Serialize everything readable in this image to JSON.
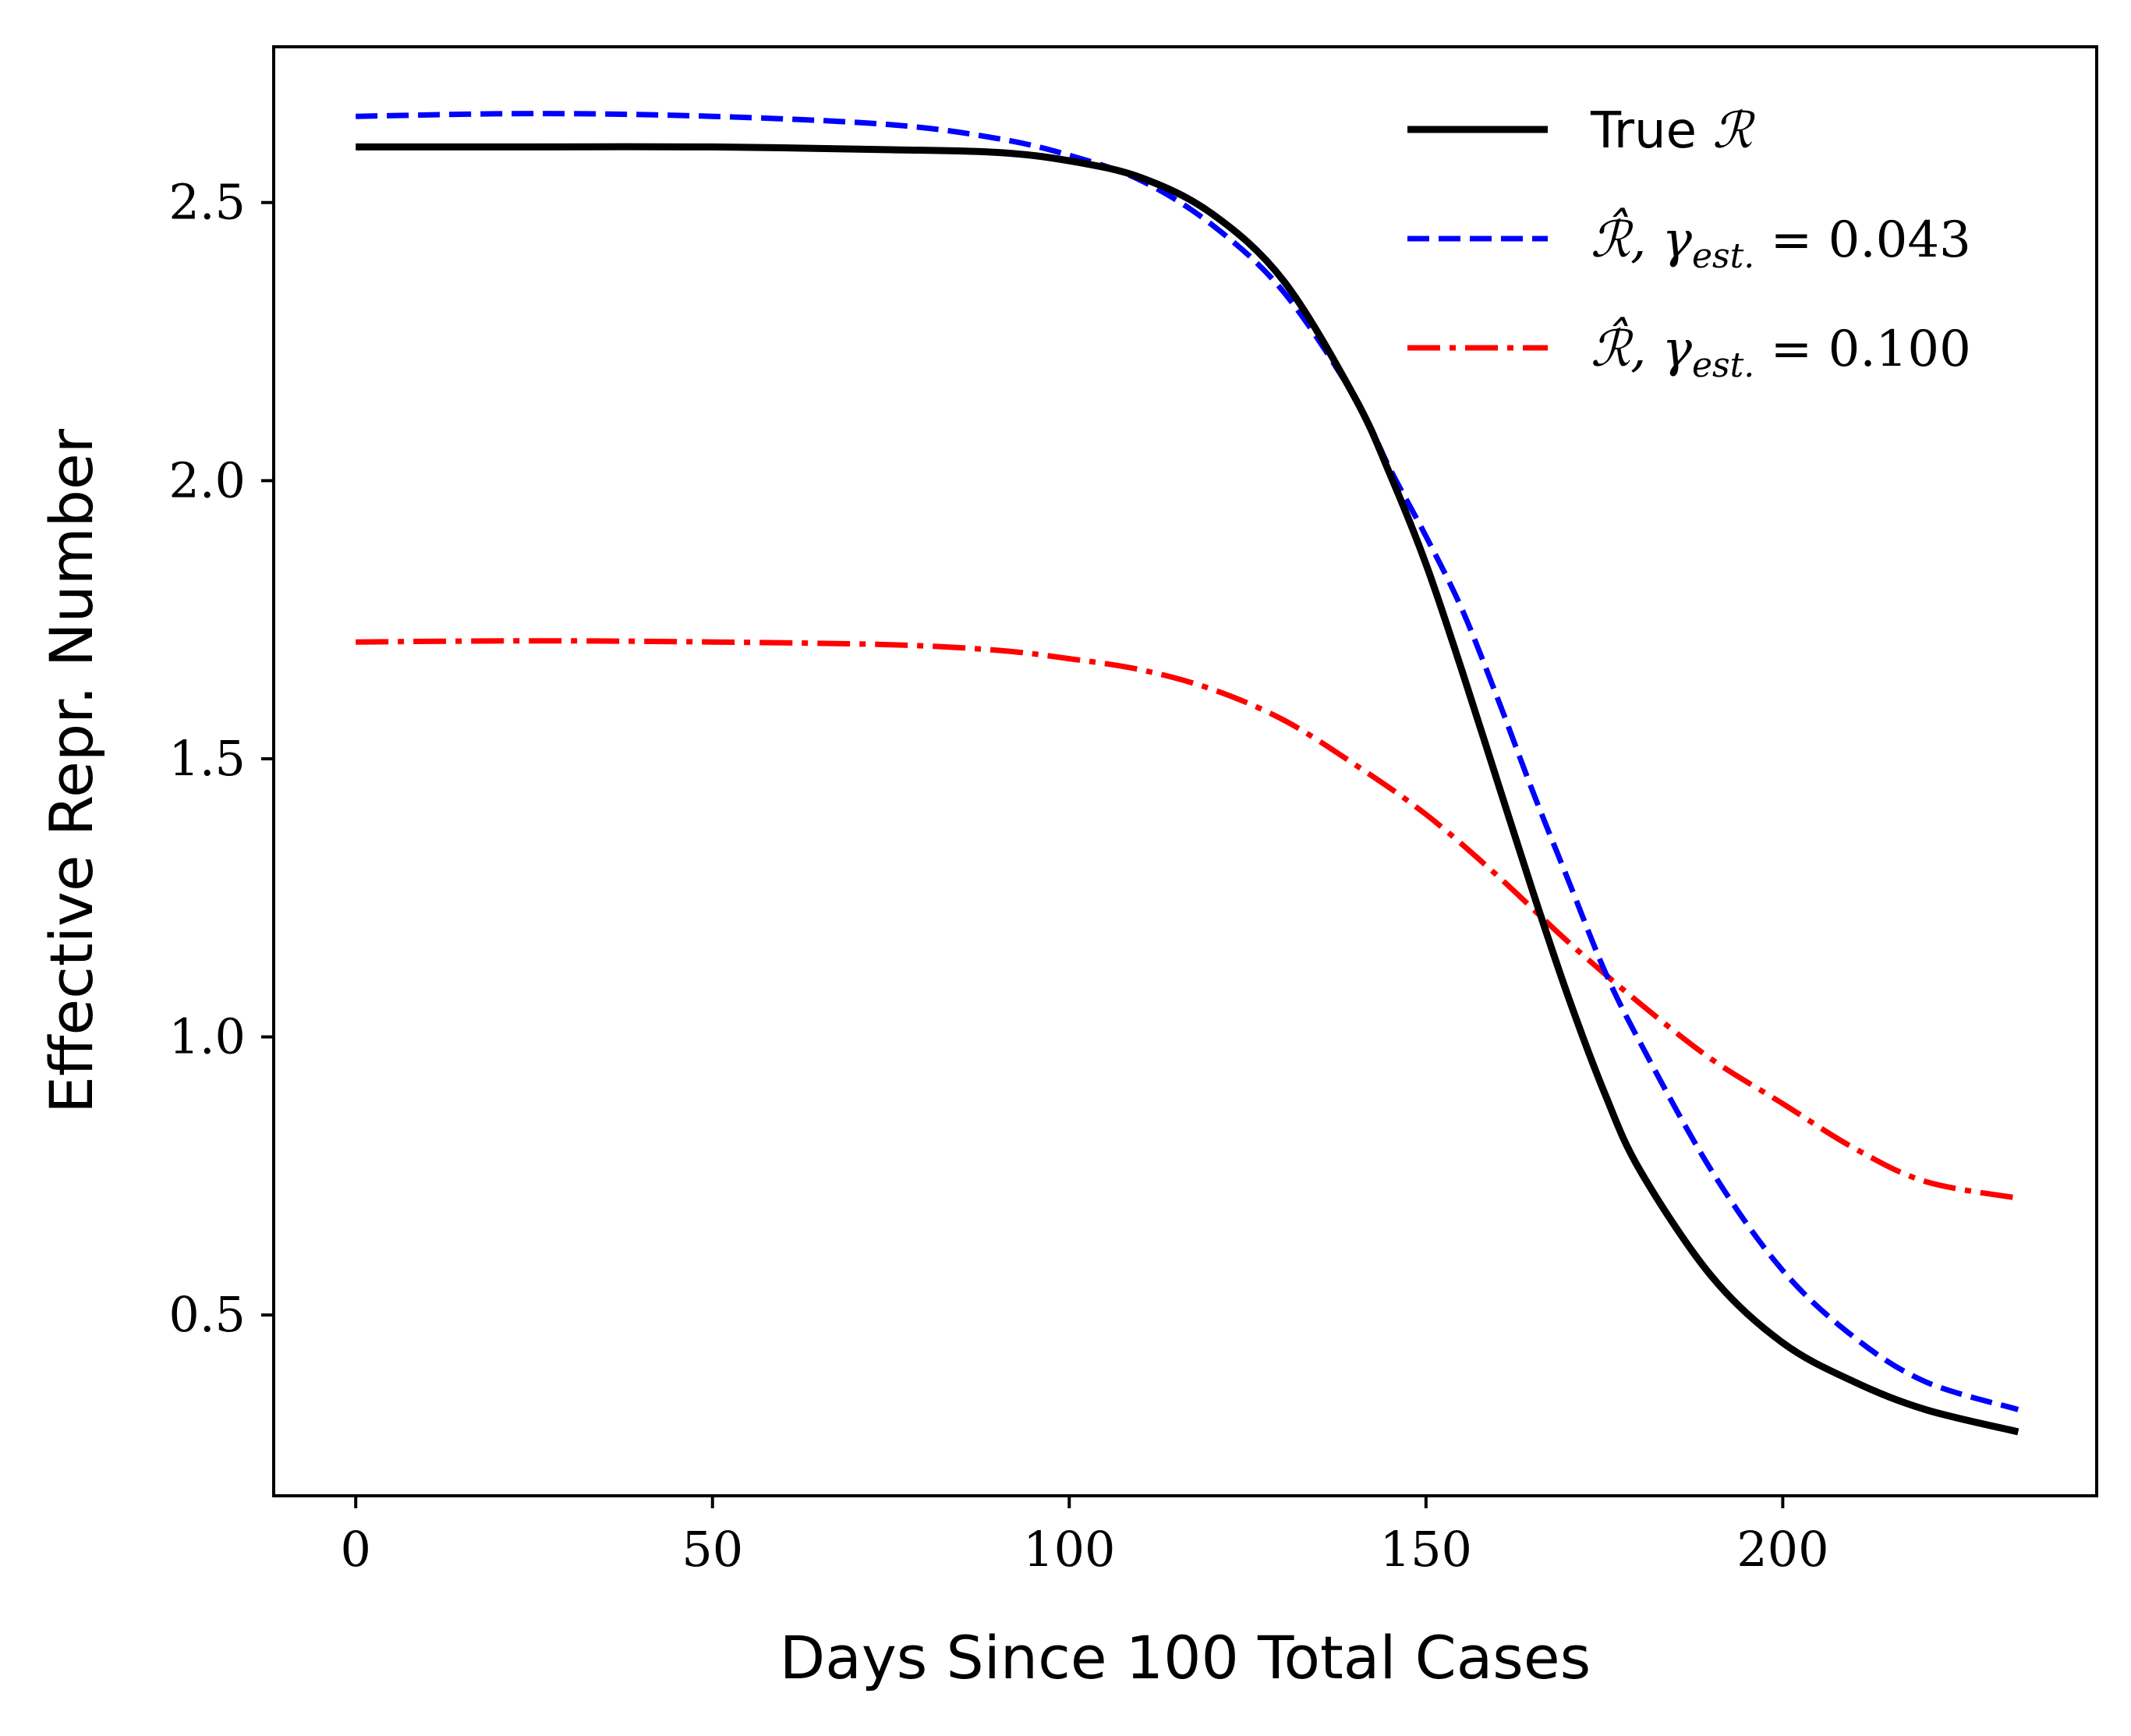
{
  "chart_data": {
    "type": "line",
    "xlabel": "Days Since 100 Total Cases",
    "ylabel": "Effective Repr. Number",
    "xlim": [
      -11.5,
      244
    ],
    "ylim": [
      0.175,
      2.78
    ],
    "xticks": [
      0,
      50,
      100,
      150,
      200
    ],
    "xtick_labels": [
      "0",
      "50",
      "100",
      "150",
      "200"
    ],
    "yticks": [
      0.5,
      1.0,
      1.5,
      2.0,
      2.5
    ],
    "ytick_labels": [
      "0.5",
      "1.0",
      "1.5",
      "2.0",
      "2.5"
    ],
    "grid": false,
    "legend_position": "top-right",
    "series": [
      {
        "name": "True ℛ",
        "color": "#000000",
        "style": "solid",
        "x": [
          0,
          25,
          50,
          75,
          90,
          100,
          110,
          120,
          130,
          140,
          145,
          150,
          155,
          160,
          165,
          170,
          175,
          180,
          190,
          200,
          210,
          220,
          233
        ],
        "y": [
          2.6,
          2.6,
          2.6,
          2.595,
          2.59,
          2.575,
          2.545,
          2.48,
          2.36,
          2.15,
          2.01,
          1.85,
          1.66,
          1.46,
          1.26,
          1.07,
          0.9,
          0.76,
          0.57,
          0.45,
          0.38,
          0.33,
          0.29
        ]
      },
      {
        "name": "ℛ̂, γest. = 0.043",
        "color": "#0000ff",
        "style": "dashed",
        "x": [
          0,
          25,
          50,
          75,
          90,
          100,
          110,
          120,
          130,
          140,
          145,
          150,
          155,
          160,
          165,
          170,
          175,
          180,
          190,
          200,
          210,
          220,
          233
        ],
        "y": [
          2.655,
          2.66,
          2.655,
          2.64,
          2.615,
          2.585,
          2.54,
          2.46,
          2.34,
          2.15,
          2.02,
          1.9,
          1.77,
          1.61,
          1.44,
          1.28,
          1.12,
          0.99,
          0.76,
          0.58,
          0.46,
          0.38,
          0.33
        ]
      },
      {
        "name": "ℛ̂, γest. = 0.100",
        "color": "#ff0000",
        "style": "dashdot",
        "x": [
          0,
          25,
          50,
          75,
          90,
          100,
          110,
          120,
          130,
          140,
          150,
          160,
          170,
          180,
          190,
          200,
          210,
          220,
          233
        ],
        "y": [
          1.71,
          1.712,
          1.71,
          1.705,
          1.695,
          1.68,
          1.66,
          1.625,
          1.57,
          1.49,
          1.4,
          1.29,
          1.17,
          1.06,
          0.96,
          0.88,
          0.8,
          0.74,
          0.71
        ]
      }
    ],
    "legend": {
      "entries": [
        {
          "prefix": "True ",
          "math": "ℛ"
        },
        {
          "prefix": "ℛ̂, γ",
          "sub": "est.",
          "suffix": " = 0.043"
        },
        {
          "prefix": "ℛ̂, γ",
          "sub": "est.",
          "suffix": " = 0.100"
        }
      ]
    }
  }
}
